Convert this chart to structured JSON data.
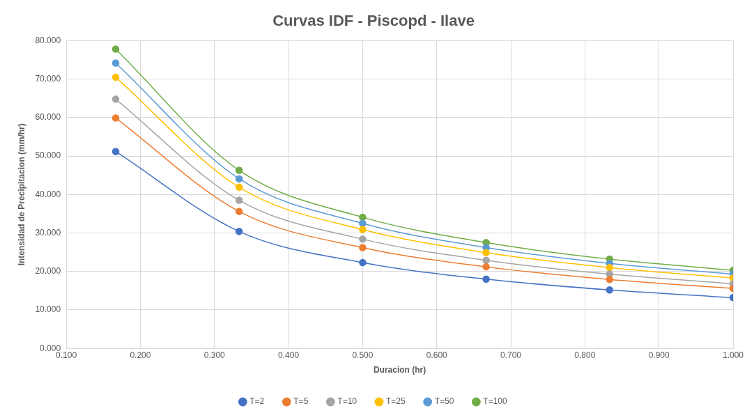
{
  "chart_data": {
    "type": "line",
    "title": "Curvas IDF - Piscopd - Ilave",
    "xlabel": "Duracion (hr)",
    "ylabel": "Intensidad de Precipitacion (mm/hr)",
    "x": [
      0.1667,
      0.3333,
      0.5,
      0.6667,
      0.8333,
      1.0
    ],
    "series": [
      {
        "name": "T=2",
        "color": "#4472c4",
        "values": [
          51.2,
          30.4,
          22.3,
          18.0,
          15.2,
          13.2
        ]
      },
      {
        "name": "T=5",
        "color": "#ed7d31",
        "values": [
          59.9,
          35.6,
          26.2,
          21.2,
          17.9,
          15.6
        ]
      },
      {
        "name": "T=10",
        "color": "#a5a5a5",
        "values": [
          64.8,
          38.5,
          28.4,
          22.9,
          19.3,
          16.8
        ]
      },
      {
        "name": "T=25",
        "color": "#ffc000",
        "values": [
          70.5,
          41.9,
          30.9,
          24.9,
          21.0,
          18.3
        ]
      },
      {
        "name": "T=50",
        "color": "#5b9bd5",
        "values": [
          74.2,
          44.1,
          32.5,
          26.2,
          22.1,
          19.3
        ]
      },
      {
        "name": "T=100",
        "color": "#70ad47",
        "values": [
          77.8,
          46.3,
          34.1,
          27.5,
          23.2,
          20.3
        ]
      }
    ],
    "xlim": [
      0.1,
      1.0
    ],
    "xticks": [
      {
        "value": 0.1,
        "label": "0.100"
      },
      {
        "value": 0.2,
        "label": "0.200"
      },
      {
        "value": 0.3,
        "label": "0.300"
      },
      {
        "value": 0.4,
        "label": "0.400"
      },
      {
        "value": 0.5,
        "label": "0.500"
      },
      {
        "value": 0.6,
        "label": "0.600"
      },
      {
        "value": 0.7,
        "label": "0.700"
      },
      {
        "value": 0.8,
        "label": "0.800"
      },
      {
        "value": 0.9,
        "label": "0.900"
      },
      {
        "value": 1.0,
        "label": "1.000"
      }
    ],
    "ylim": [
      0,
      80
    ],
    "yticks": [
      {
        "value": 0,
        "label": "0.000"
      },
      {
        "value": 10,
        "label": "10.000"
      },
      {
        "value": 20,
        "label": "20.000"
      },
      {
        "value": 30,
        "label": "30.000"
      },
      {
        "value": 40,
        "label": "40.000"
      },
      {
        "value": 50,
        "label": "50.000"
      },
      {
        "value": 60,
        "label": "60.000"
      },
      {
        "value": 70,
        "label": "70.000"
      },
      {
        "value": 80,
        "label": "80.000"
      }
    ],
    "grid": true,
    "legend": "bottom",
    "marker": "circle",
    "line_style": "solid"
  }
}
